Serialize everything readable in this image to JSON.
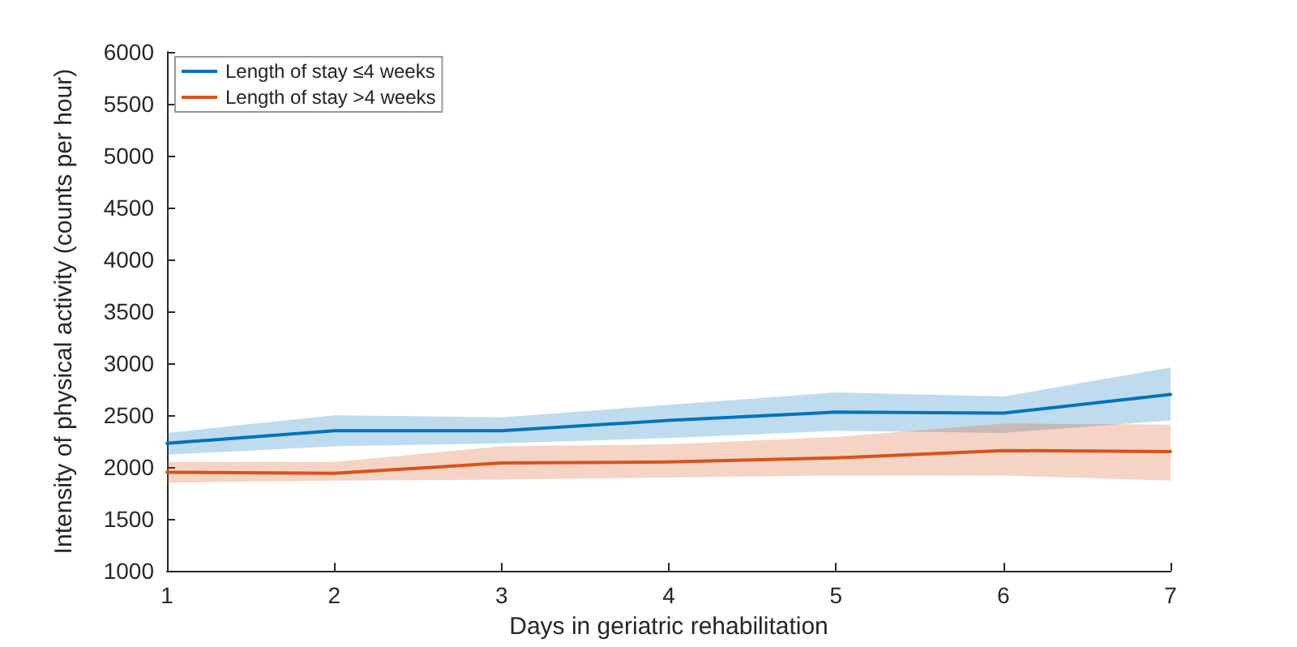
{
  "chart_data": {
    "type": "line",
    "xlabel": "Days in geriatric rehabilitation",
    "ylabel": "Intensity of physical activity (counts per hour)",
    "x": [
      1,
      2,
      3,
      4,
      5,
      6,
      7
    ],
    "series": [
      {
        "name": "Length of stay ≤4 weeks",
        "color": "#0072bd",
        "values": [
          2230,
          2350,
          2350,
          2450,
          2530,
          2520,
          2700
        ],
        "lower": [
          2120,
          2200,
          2230,
          2280,
          2350,
          2330,
          2450
        ],
        "upper": [
          2330,
          2500,
          2480,
          2600,
          2720,
          2680,
          2960
        ]
      },
      {
        "name": "Length of stay >4 weeks",
        "color": "#d95319",
        "values": [
          1950,
          1940,
          2040,
          2050,
          2090,
          2160,
          2150
        ],
        "lower": [
          1850,
          1870,
          1880,
          1900,
          1920,
          1920,
          1870
        ],
        "upper": [
          2050,
          2050,
          2200,
          2220,
          2290,
          2420,
          2410
        ]
      }
    ],
    "xlim": [
      1,
      7
    ],
    "xticks": [
      1,
      2,
      3,
      4,
      5,
      6,
      7
    ],
    "ylim": [
      1000,
      6000
    ],
    "yticks": [
      1000,
      1500,
      2000,
      2500,
      3000,
      3500,
      4000,
      4500,
      5000,
      5500,
      6000
    ],
    "grid": false,
    "legend": "top left",
    "marker": "none",
    "line_style": "solid"
  }
}
